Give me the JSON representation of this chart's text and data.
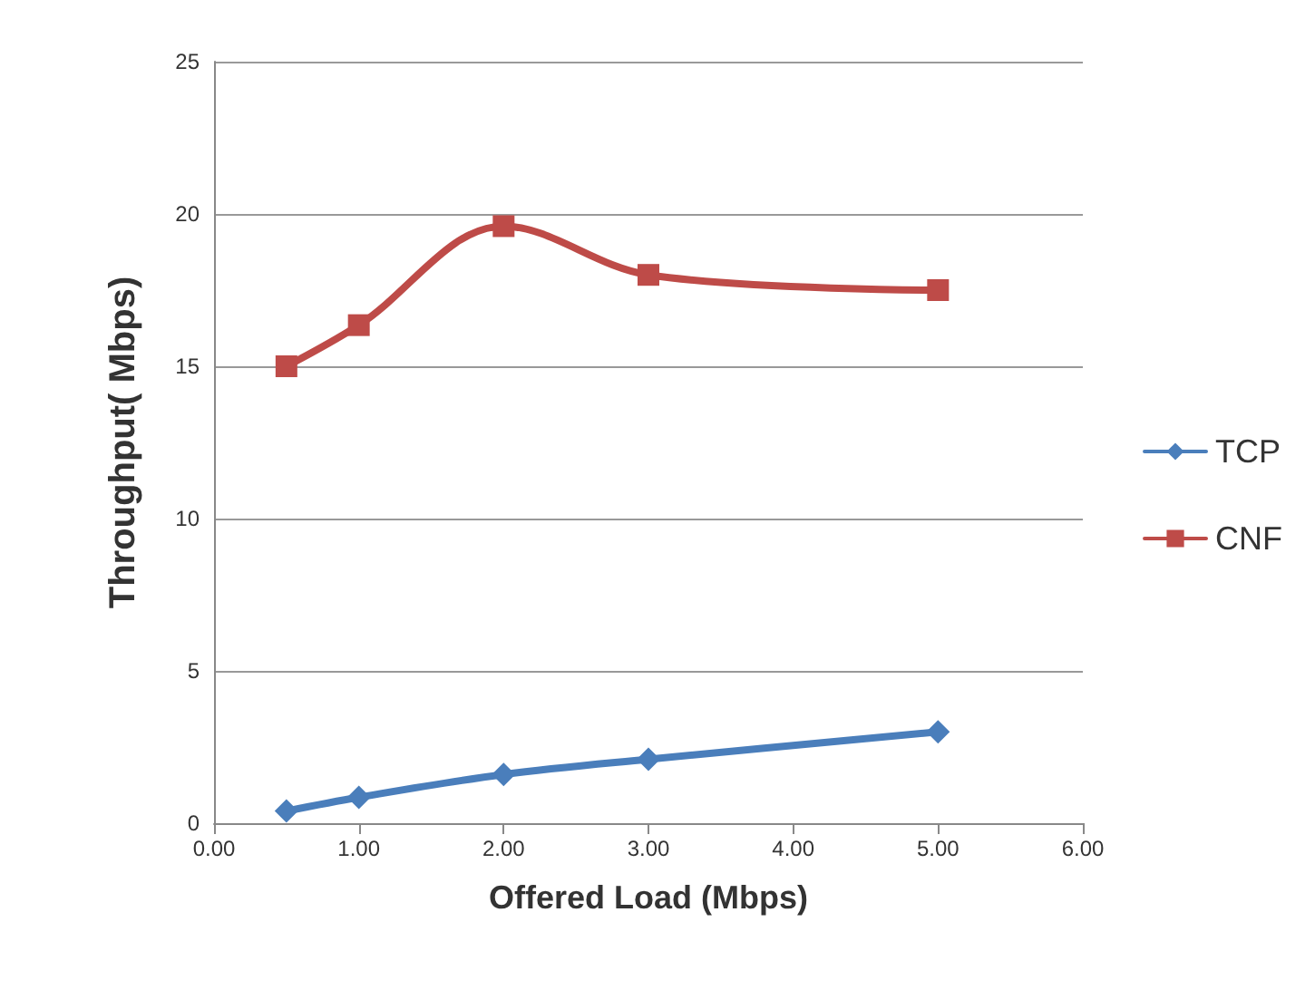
{
  "chart_data": {
    "type": "line",
    "xlabel": "Offered Load (Mbps)",
    "ylabel": "Throughput( Mbps)",
    "x": [
      0.5,
      1,
      2,
      3,
      5
    ],
    "series": [
      {
        "name": "TCP",
        "color": "#4a7ebb",
        "marker": "diamond",
        "values": [
          0.4,
          0.85,
          1.6,
          2.1,
          3.0
        ]
      },
      {
        "name": "CNF",
        "color": "#be4b48",
        "marker": "square",
        "values": [
          15.0,
          16.35,
          19.6,
          18.0,
          17.5
        ]
      }
    ],
    "xlim": [
      0,
      6
    ],
    "xticks": [
      {
        "value": 0,
        "label": "0.00"
      },
      {
        "value": 1,
        "label": "1.00"
      },
      {
        "value": 2,
        "label": "2.00"
      },
      {
        "value": 3,
        "label": "3.00"
      },
      {
        "value": 4,
        "label": "4.00"
      },
      {
        "value": 5,
        "label": "5.00"
      },
      {
        "value": 6,
        "label": "6.00"
      }
    ],
    "ylim": [
      0,
      25
    ],
    "yticks": [
      0,
      5,
      10,
      15,
      20,
      25
    ],
    "grid": "y",
    "legend": "right",
    "line_style": "solid"
  }
}
